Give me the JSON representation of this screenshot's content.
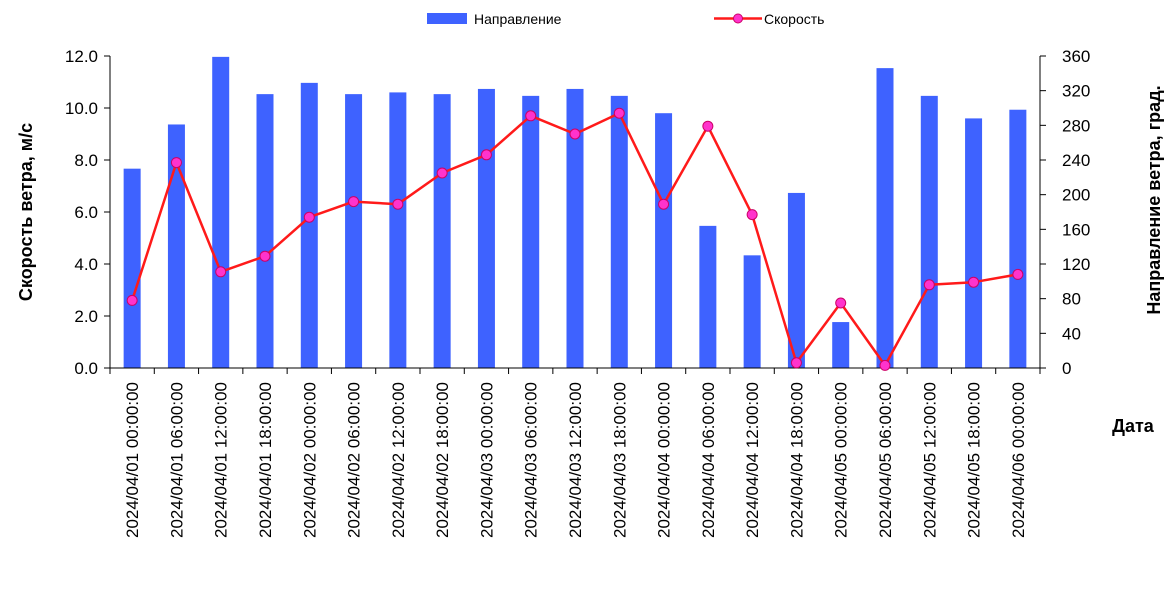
{
  "chart_data": {
    "type": "bar",
    "title": "",
    "xlabel": "Дата",
    "ylabel": "Скорость ветра, м/с",
    "y2label": "Направление ветра, град.",
    "ylim": [
      0,
      12
    ],
    "y2lim": [
      0,
      360
    ],
    "yticks": [
      "0.0",
      "2.0",
      "4.0",
      "6.0",
      "8.0",
      "10.0",
      "12.0"
    ],
    "y2ticks": [
      "0",
      "40",
      "80",
      "120",
      "160",
      "200",
      "240",
      "280",
      "320",
      "360"
    ],
    "grid": false,
    "legend_position": "top-center",
    "categories": [
      "2024/04/01 00:00:00",
      "2024/04/01 06:00:00",
      "2024/04/01 12:00:00",
      "2024/04/01 18:00:00",
      "2024/04/02 00:00:00",
      "2024/04/02 06:00:00",
      "2024/04/02 12:00:00",
      "2024/04/02 18:00:00",
      "2024/04/03 00:00:00",
      "2024/04/03 06:00:00",
      "2024/04/03 12:00:00",
      "2024/04/03 18:00:00",
      "2024/04/04 00:00:00",
      "2024/04/04 06:00:00",
      "2024/04/04 12:00:00",
      "2024/04/04 18:00:00",
      "2024/04/05 00:00:00",
      "2024/04/05 06:00:00",
      "2024/04/05 12:00:00",
      "2024/04/05 18:00:00",
      "2024/04/06 00:00:00"
    ],
    "series": [
      {
        "name": "Направление",
        "type": "bar",
        "axis": "right",
        "color": "#3e62ff",
        "values": [
          230,
          281,
          359,
          316,
          329,
          316,
          318,
          316,
          322,
          314,
          322,
          314,
          294,
          164,
          130,
          202,
          53,
          346,
          314,
          288,
          298
        ]
      },
      {
        "name": "Скорость",
        "type": "line",
        "axis": "left",
        "color": "#ff1a1a",
        "marker_color": "#ff33cc",
        "values": [
          2.6,
          7.9,
          3.7,
          4.3,
          5.8,
          6.4,
          6.3,
          7.5,
          8.2,
          9.7,
          9.0,
          9.8,
          6.3,
          9.3,
          5.9,
          0.2,
          2.5,
          0.1,
          3.2,
          3.3,
          3.6
        ]
      }
    ]
  }
}
